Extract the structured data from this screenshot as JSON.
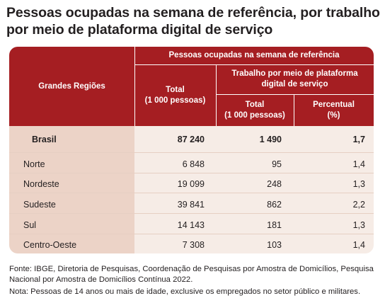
{
  "title": "Pessoas ocupadas na semana de referência, por trabalho por meio de plataforma digital de serviço",
  "table": {
    "header_regions": "Grandes Regiões",
    "header_group": "Pessoas ocupadas na semana de referência",
    "header_total": "Total\n(1 000 pessoas)",
    "header_platform": "Trabalho por meio de plataforma\ndigital de serviço",
    "header_platform_total": "Total\n(1 000 pessoas)",
    "header_platform_pct": "Percentual\n(%)",
    "rows": [
      {
        "region": "Brasil",
        "total": "87 240",
        "platform_total": "1 490",
        "percent": "1,7"
      },
      {
        "region": "Norte",
        "total": "6 848",
        "platform_total": "95",
        "percent": "1,4"
      },
      {
        "region": "Nordeste",
        "total": "19 099",
        "platform_total": "248",
        "percent": "1,3"
      },
      {
        "region": "Sudeste",
        "total": "39 841",
        "platform_total": "862",
        "percent": "2,2"
      },
      {
        "region": "Sul",
        "total": "14 143",
        "platform_total": "181",
        "percent": "1,3"
      },
      {
        "region": "Centro-Oeste",
        "total": "7 308",
        "platform_total": "103",
        "percent": "1,4"
      }
    ]
  },
  "source": "Fonte: IBGE, Diretoria de Pesquisas, Coordenação de Pesquisas por Amostra de Domicílios, Pesquisa Nacional por Amostra de Domicílios Contínua 2022.",
  "note": "Nota: Pessoas de 14 anos ou mais de idade, exclusive os empregados no setor público e militares."
}
